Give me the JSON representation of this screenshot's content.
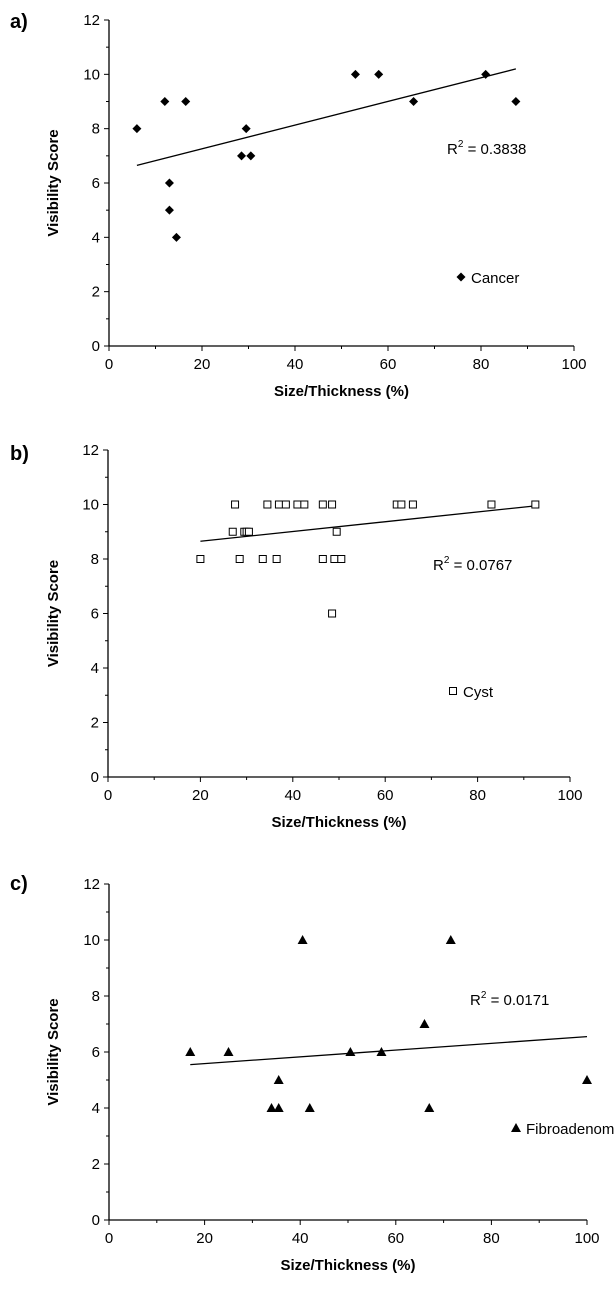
{
  "chart_data": [
    {
      "panel": "a)",
      "type": "scatter",
      "xlabel": "Size/Thickness (%)",
      "ylabel": "Visibility Score",
      "xlim": [
        0,
        100
      ],
      "ylim": [
        0,
        12
      ],
      "xticks": [
        0,
        20,
        40,
        60,
        80,
        100
      ],
      "yticks": [
        0,
        2,
        4,
        6,
        8,
        10,
        12
      ],
      "grid": false,
      "legend_position": "bottom-right",
      "series": [
        {
          "name": "Cancer",
          "marker": "diamond-filled",
          "points": [
            {
              "x": 6,
              "y": 8
            },
            {
              "x": 12,
              "y": 9
            },
            {
              "x": 13,
              "y": 6
            },
            {
              "x": 13,
              "y": 5
            },
            {
              "x": 14.5,
              "y": 4
            },
            {
              "x": 16.5,
              "y": 9
            },
            {
              "x": 28.5,
              "y": 7
            },
            {
              "x": 29.5,
              "y": 8
            },
            {
              "x": 30.5,
              "y": 7
            },
            {
              "x": 53,
              "y": 10
            },
            {
              "x": 58,
              "y": 10
            },
            {
              "x": 65.5,
              "y": 9
            },
            {
              "x": 81,
              "y": 10
            },
            {
              "x": 87.5,
              "y": 9
            }
          ]
        }
      ],
      "trendline": {
        "x": [
          6,
          87.5
        ],
        "y": [
          6.65,
          10.2
        ]
      },
      "r2_label": "R",
      "r2_exp": "2",
      "r2_value": " = 0.3838"
    },
    {
      "panel": "b)",
      "type": "scatter",
      "xlabel": "Size/Thickness (%)",
      "ylabel": "Visibility Score",
      "xlim": [
        0,
        100
      ],
      "ylim": [
        0,
        12
      ],
      "xticks": [
        0,
        20,
        40,
        60,
        80,
        100
      ],
      "yticks": [
        0,
        2,
        4,
        6,
        8,
        10,
        12
      ],
      "grid": false,
      "legend_position": "bottom-right",
      "series": [
        {
          "name": "Cyst",
          "marker": "square-open",
          "points": [
            {
              "x": 20,
              "y": 8
            },
            {
              "x": 27,
              "y": 9
            },
            {
              "x": 27.5,
              "y": 10
            },
            {
              "x": 28.5,
              "y": 8
            },
            {
              "x": 29.5,
              "y": 9
            },
            {
              "x": 30,
              "y": 9
            },
            {
              "x": 30.5,
              "y": 9
            },
            {
              "x": 33.5,
              "y": 8
            },
            {
              "x": 34.5,
              "y": 10
            },
            {
              "x": 36.5,
              "y": 8
            },
            {
              "x": 37,
              "y": 10
            },
            {
              "x": 38.5,
              "y": 10
            },
            {
              "x": 41,
              "y": 10
            },
            {
              "x": 42.5,
              "y": 10
            },
            {
              "x": 46.5,
              "y": 10
            },
            {
              "x": 46.5,
              "y": 8
            },
            {
              "x": 48.5,
              "y": 10
            },
            {
              "x": 48.5,
              "y": 6
            },
            {
              "x": 49,
              "y": 8
            },
            {
              "x": 49.5,
              "y": 9
            },
            {
              "x": 50.5,
              "y": 8
            },
            {
              "x": 62.5,
              "y": 10
            },
            {
              "x": 63.5,
              "y": 10
            },
            {
              "x": 66,
              "y": 10
            },
            {
              "x": 83,
              "y": 10
            },
            {
              "x": 92.5,
              "y": 10
            }
          ]
        }
      ],
      "trendline": {
        "x": [
          20,
          92.5
        ],
        "y": [
          8.65,
          9.95
        ]
      },
      "r2_label": "R",
      "r2_exp": "2",
      "r2_value": " = 0.0767"
    },
    {
      "panel": "c)",
      "type": "scatter",
      "xlabel": "Size/Thickness (%)",
      "ylabel": "Visibility Score",
      "xlim": [
        0,
        100
      ],
      "ylim": [
        0,
        12
      ],
      "xticks": [
        0,
        20,
        40,
        60,
        80,
        100
      ],
      "yticks": [
        0,
        2,
        4,
        6,
        8,
        10,
        12
      ],
      "grid": false,
      "legend_position": "bottom-right",
      "series": [
        {
          "name": "Fibroadenoma",
          "marker": "triangle-filled",
          "points": [
            {
              "x": 17,
              "y": 6
            },
            {
              "x": 25,
              "y": 6
            },
            {
              "x": 34,
              "y": 4
            },
            {
              "x": 35.5,
              "y": 4
            },
            {
              "x": 35.5,
              "y": 5
            },
            {
              "x": 40.5,
              "y": 10
            },
            {
              "x": 42,
              "y": 4
            },
            {
              "x": 50.5,
              "y": 6
            },
            {
              "x": 57,
              "y": 6
            },
            {
              "x": 66,
              "y": 7
            },
            {
              "x": 67,
              "y": 4
            },
            {
              "x": 71.5,
              "y": 10
            },
            {
              "x": 100,
              "y": 5
            }
          ]
        }
      ],
      "trendline": {
        "x": [
          17,
          100
        ],
        "y": [
          5.55,
          6.55
        ]
      },
      "r2_label": "R",
      "r2_exp": "2",
      "r2_value": " = 0.0171"
    }
  ]
}
